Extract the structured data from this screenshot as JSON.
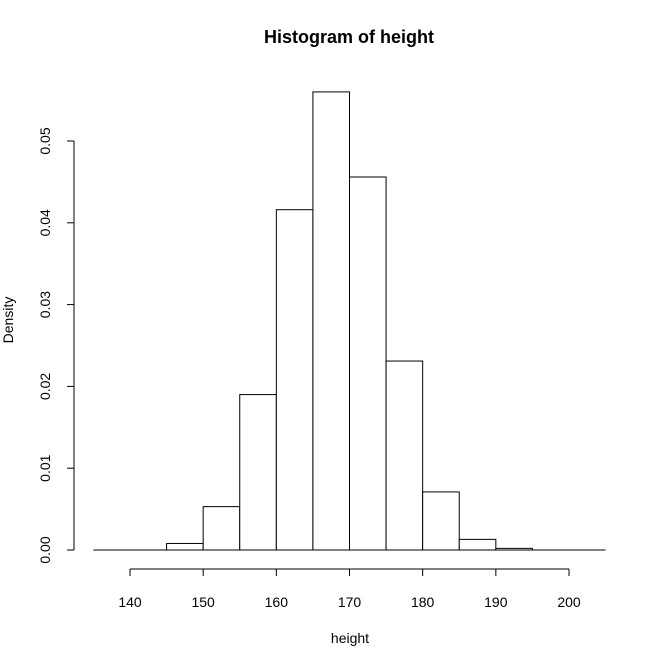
{
  "chart_data": {
    "type": "bar",
    "title": "Histogram of height",
    "xlabel": "height",
    "ylabel": "Density",
    "xlim": [
      135,
      205
    ],
    "ylim": [
      0,
      0.055
    ],
    "x_ticks": [
      140,
      150,
      160,
      170,
      180,
      190,
      200
    ],
    "y_ticks": [
      0.0,
      0.01,
      0.02,
      0.03,
      0.04,
      0.05
    ],
    "y_tick_labels": [
      "0.00",
      "0.01",
      "0.02",
      "0.03",
      "0.04",
      "0.05"
    ],
    "bin_width": 5,
    "bins": [
      {
        "x0": 135,
        "x1": 140,
        "density": 0.0
      },
      {
        "x0": 140,
        "x1": 145,
        "density": 0.0
      },
      {
        "x0": 145,
        "x1": 150,
        "density": 0.0008
      },
      {
        "x0": 150,
        "x1": 155,
        "density": 0.0053
      },
      {
        "x0": 155,
        "x1": 160,
        "density": 0.019
      },
      {
        "x0": 160,
        "x1": 165,
        "density": 0.0416
      },
      {
        "x0": 165,
        "x1": 170,
        "density": 0.056
      },
      {
        "x0": 170,
        "x1": 175,
        "density": 0.0456
      },
      {
        "x0": 175,
        "x1": 180,
        "density": 0.0231
      },
      {
        "x0": 180,
        "x1": 185,
        "density": 0.0071
      },
      {
        "x0": 185,
        "x1": 190,
        "density": 0.0013
      },
      {
        "x0": 190,
        "x1": 195,
        "density": 0.0002
      },
      {
        "x0": 195,
        "x1": 200,
        "density": 0.0
      },
      {
        "x0": 200,
        "x1": 205,
        "density": 0.0
      }
    ],
    "grid": false,
    "legend": "none"
  }
}
